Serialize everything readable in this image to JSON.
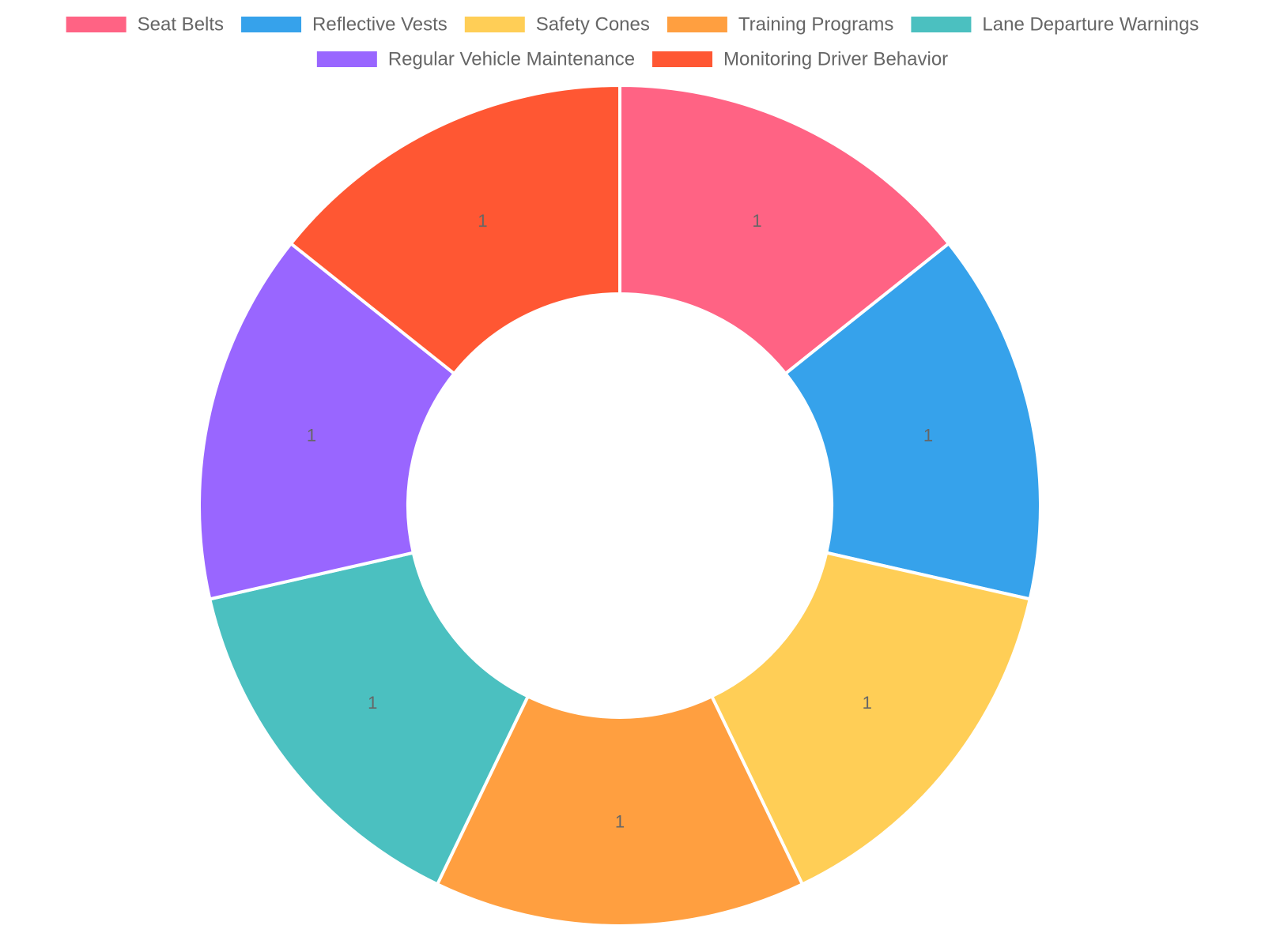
{
  "chart_data": {
    "type": "doughnut",
    "categories": [
      "Seat Belts",
      "Reflective Vests",
      "Safety Cones",
      "Training Programs",
      "Lane Departure Warnings",
      "Regular Vehicle Maintenance",
      "Monitoring Driver Behavior"
    ],
    "values": [
      1,
      1,
      1,
      1,
      1,
      1,
      1
    ],
    "data_labels": [
      "1",
      "1",
      "1",
      "1",
      "1",
      "1",
      "1"
    ],
    "colors": [
      "#FF6384",
      "#36A2EB",
      "#FFCE56",
      "#FF9F40",
      "#4BC0C0",
      "#9966FF",
      "#FF5733"
    ],
    "legend_position": "top",
    "title": "",
    "label_color": "#666666"
  }
}
